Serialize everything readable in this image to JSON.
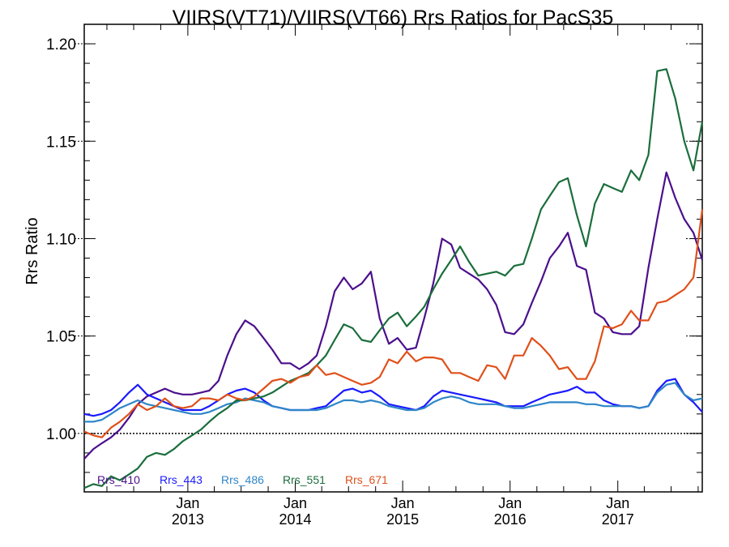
{
  "chart_data": {
    "type": "line",
    "title": "VIIRS(VT71)/VIIRS(VT66)  Rrs Ratios for PacS35",
    "xlabel": "",
    "ylabel": "Rrs Ratio",
    "xlim": [
      "2012-01-15",
      "2017-10-15"
    ],
    "ylim": [
      0.97,
      1.21
    ],
    "yticks": [
      "1.00",
      "1.05",
      "1.10",
      "1.15",
      "1.20"
    ],
    "xticks": [
      {
        "date": "2013-01-01",
        "month": "Jan",
        "year": "2013"
      },
      {
        "date": "2014-01-01",
        "month": "Jan",
        "year": "2014"
      },
      {
        "date": "2015-01-01",
        "month": "Jan",
        "year": "2015"
      },
      {
        "date": "2016-01-01",
        "month": "Jan",
        "year": "2016"
      },
      {
        "date": "2017-01-01",
        "month": "Jan",
        "year": "2017"
      }
    ],
    "reference_line": 1.0,
    "legend_position": "bottom-left",
    "x": [
      "2012-01-15",
      "2012-02-15",
      "2012-03-15",
      "2012-04-15",
      "2012-05-15",
      "2012-06-15",
      "2012-07-15",
      "2012-08-15",
      "2012-09-15",
      "2012-10-15",
      "2012-11-15",
      "2012-12-15",
      "2013-01-15",
      "2013-02-15",
      "2013-03-15",
      "2013-04-15",
      "2013-05-15",
      "2013-06-15",
      "2013-07-15",
      "2013-08-15",
      "2013-09-15",
      "2013-10-15",
      "2013-11-15",
      "2013-12-15",
      "2014-01-15",
      "2014-02-15",
      "2014-03-15",
      "2014-04-15",
      "2014-05-15",
      "2014-06-15",
      "2014-07-15",
      "2014-08-15",
      "2014-09-15",
      "2014-10-15",
      "2014-11-15",
      "2014-12-15",
      "2015-01-15",
      "2015-02-15",
      "2015-03-15",
      "2015-04-15",
      "2015-05-15",
      "2015-06-15",
      "2015-07-15",
      "2015-08-15",
      "2015-09-15",
      "2015-10-15",
      "2015-11-15",
      "2015-12-15",
      "2016-01-15",
      "2016-02-15",
      "2016-03-15",
      "2016-04-15",
      "2016-05-15",
      "2016-06-15",
      "2016-07-15",
      "2016-08-15",
      "2016-09-15",
      "2016-10-15",
      "2016-11-15",
      "2016-12-15",
      "2017-01-15",
      "2017-02-15",
      "2017-03-15",
      "2017-04-15",
      "2017-05-15",
      "2017-06-15",
      "2017-07-15",
      "2017-08-15",
      "2017-09-15",
      "2017-10-15"
    ],
    "series": [
      {
        "name": "Rrs_410",
        "color": "#4b0f8c",
        "values": [
          0.987,
          0.992,
          0.995,
          0.998,
          1.002,
          1.008,
          1.015,
          1.019,
          1.021,
          1.023,
          1.021,
          1.02,
          1.02,
          1.021,
          1.022,
          1.027,
          1.04,
          1.051,
          1.058,
          1.055,
          1.049,
          1.043,
          1.036,
          1.036,
          1.033,
          1.036,
          1.04,
          1.055,
          1.073,
          1.08,
          1.074,
          1.077,
          1.083,
          1.059,
          1.046,
          1.049,
          1.043,
          1.044,
          1.059,
          1.077,
          1.1,
          1.097,
          1.085,
          1.082,
          1.079,
          1.074,
          1.066,
          1.052,
          1.051,
          1.056,
          1.067,
          1.078,
          1.09,
          1.096,
          1.103,
          1.086,
          1.084,
          1.062,
          1.059,
          1.052,
          1.051,
          1.051,
          1.055,
          1.085,
          1.11,
          1.134,
          1.121,
          1.11,
          1.103,
          1.089
        ]
      },
      {
        "name": "Rrs_443",
        "color": "#1a1aff",
        "values": [
          1.01,
          1.009,
          1.01,
          1.012,
          1.016,
          1.021,
          1.025,
          1.02,
          1.018,
          1.016,
          1.014,
          1.012,
          1.012,
          1.012,
          1.014,
          1.017,
          1.02,
          1.022,
          1.023,
          1.021,
          1.017,
          1.014,
          1.013,
          1.012,
          1.012,
          1.012,
          1.013,
          1.014,
          1.018,
          1.022,
          1.023,
          1.021,
          1.022,
          1.019,
          1.015,
          1.014,
          1.013,
          1.012,
          1.014,
          1.019,
          1.022,
          1.021,
          1.02,
          1.019,
          1.018,
          1.017,
          1.016,
          1.014,
          1.014,
          1.014,
          1.016,
          1.018,
          1.02,
          1.021,
          1.022,
          1.024,
          1.021,
          1.021,
          1.017,
          1.015,
          1.014,
          1.014,
          1.013,
          1.014,
          1.022,
          1.027,
          1.028,
          1.02,
          1.016,
          1.011
        ]
      },
      {
        "name": "Rrs_486",
        "color": "#2e86c8",
        "values": [
          1.006,
          1.006,
          1.007,
          1.01,
          1.013,
          1.015,
          1.017,
          1.015,
          1.014,
          1.013,
          1.012,
          1.011,
          1.01,
          1.01,
          1.011,
          1.013,
          1.015,
          1.016,
          1.018,
          1.017,
          1.016,
          1.014,
          1.013,
          1.012,
          1.012,
          1.012,
          1.012,
          1.013,
          1.015,
          1.017,
          1.017,
          1.016,
          1.017,
          1.016,
          1.014,
          1.013,
          1.012,
          1.012,
          1.013,
          1.016,
          1.018,
          1.019,
          1.018,
          1.016,
          1.015,
          1.015,
          1.015,
          1.014,
          1.013,
          1.013,
          1.014,
          1.015,
          1.016,
          1.016,
          1.016,
          1.016,
          1.015,
          1.015,
          1.014,
          1.014,
          1.014,
          1.014,
          1.013,
          1.014,
          1.021,
          1.025,
          1.026,
          1.02,
          1.017,
          1.018
        ]
      },
      {
        "name": "Rrs_551",
        "color": "#1a6e3c",
        "values": [
          0.972,
          0.974,
          0.973,
          0.978,
          0.976,
          0.979,
          0.982,
          0.988,
          0.99,
          0.989,
          0.992,
          0.996,
          0.999,
          1.002,
          1.006,
          1.01,
          1.013,
          1.017,
          1.017,
          1.018,
          1.019,
          1.021,
          1.024,
          1.027,
          1.029,
          1.031,
          1.035,
          1.04,
          1.048,
          1.056,
          1.054,
          1.048,
          1.047,
          1.053,
          1.059,
          1.062,
          1.055,
          1.06,
          1.065,
          1.074,
          1.082,
          1.089,
          1.096,
          1.088,
          1.081,
          1.082,
          1.083,
          1.081,
          1.086,
          1.087,
          1.1,
          1.115,
          1.122,
          1.129,
          1.131,
          1.112,
          1.096,
          1.118,
          1.128,
          1.126,
          1.124,
          1.135,
          1.13,
          1.143,
          1.186,
          1.187,
          1.172,
          1.15,
          1.135,
          1.16
        ]
      },
      {
        "name": "Rrs_671",
        "color": "#e0501a",
        "values": [
          1.001,
          0.999,
          0.998,
          1.003,
          1.006,
          1.01,
          1.015,
          1.012,
          1.014,
          1.018,
          1.014,
          1.013,
          1.014,
          1.018,
          1.018,
          1.017,
          1.02,
          1.018,
          1.017,
          1.019,
          1.023,
          1.027,
          1.028,
          1.026,
          1.029,
          1.03,
          1.035,
          1.03,
          1.031,
          1.029,
          1.027,
          1.025,
          1.026,
          1.029,
          1.038,
          1.036,
          1.042,
          1.037,
          1.039,
          1.039,
          1.038,
          1.031,
          1.031,
          1.029,
          1.027,
          1.035,
          1.034,
          1.028,
          1.04,
          1.04,
          1.049,
          1.045,
          1.04,
          1.033,
          1.034,
          1.028,
          1.028,
          1.037,
          1.055,
          1.054,
          1.056,
          1.063,
          1.058,
          1.058,
          1.067,
          1.068,
          1.071,
          1.074,
          1.08,
          1.115
        ]
      }
    ]
  }
}
